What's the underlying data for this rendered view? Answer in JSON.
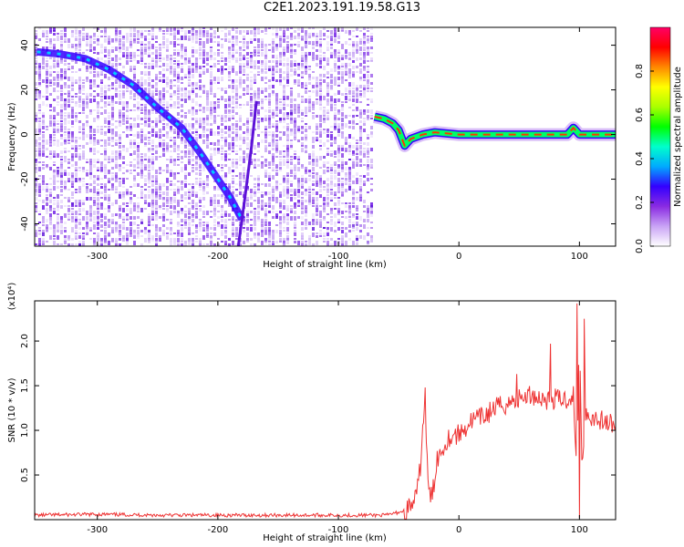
{
  "title": "C2E1.2023.191.19.58.G13",
  "colors": {
    "snr_line": "#ee3333",
    "frame": "#000000",
    "spectrogram_base": "#7b2ee8",
    "colorbar": [
      "#ffffff",
      "#c9a3f5",
      "#8a2be2",
      "#3300ff",
      "#00aaff",
      "#00ffcc",
      "#00ff00",
      "#aaff00",
      "#ffff00",
      "#ff8800",
      "#ff0000",
      "#ff0066"
    ]
  },
  "chart_data": [
    {
      "id": "spectrogram",
      "type": "heatmap",
      "xlabel": "Height of straight line (km)",
      "ylabel": "Frequency (Hz)",
      "xlim": [
        -352,
        130
      ],
      "ylim": [
        -50,
        48
      ],
      "x_ticks": [
        -300,
        -200,
        -100,
        0,
        100
      ],
      "y_ticks": [
        -40,
        -20,
        0,
        20,
        40
      ],
      "noise_region_x": [
        -352,
        -72
      ],
      "quiet_region_x": [
        -72,
        130
      ],
      "tracks": [
        {
          "name": "main-signal",
          "x": [
            -350,
            -330,
            -310,
            -290,
            -270,
            -250,
            -230,
            -215,
            -200,
            -190,
            -180
          ],
          "y": [
            37,
            36,
            34,
            29,
            22,
            12,
            3,
            -8,
            -20,
            -28,
            -38
          ]
        },
        {
          "name": "secondary-line",
          "x": [
            -183,
            -178,
            -172,
            -168
          ],
          "y": [
            -50,
            -30,
            -5,
            15
          ]
        },
        {
          "name": "carrier",
          "x": [
            -70,
            -62,
            -55,
            -50,
            -45,
            -40,
            -30,
            -20,
            0,
            20,
            50,
            80,
            90,
            95,
            100,
            130
          ],
          "y": [
            8,
            7,
            5,
            2,
            -5,
            -2,
            0,
            1,
            0,
            0,
            0,
            0,
            0,
            3,
            0,
            0
          ]
        }
      ],
      "colorbar": {
        "label": "Normalized spectral amplitude",
        "range": [
          0.0,
          1.0
        ],
        "ticks": [
          "0.0",
          "0.2",
          "0.4",
          "0.6",
          "0.8"
        ]
      }
    },
    {
      "id": "snr",
      "type": "line",
      "xlabel": "Height of straight line (km)",
      "ylabel": "SNR (10 * v/v)",
      "y_multiplier": "(x10⁴)",
      "xlim": [
        -352,
        130
      ],
      "ylim": [
        0,
        2.45
      ],
      "x_ticks": [
        -300,
        -200,
        -100,
        0,
        100
      ],
      "y_ticks": [
        0.5,
        1.0,
        1.5,
        2.0
      ],
      "y_tick_labels": [
        "0.5",
        "1.0",
        "1.5",
        "2.0"
      ],
      "series": [
        {
          "x": [
            -352,
            -300,
            -250,
            -200,
            -150,
            -100,
            -60,
            -45,
            -40,
            -35,
            -32,
            -30,
            -28,
            -27,
            -25,
            -22,
            -20,
            -18,
            -15,
            -10,
            -5,
            0,
            10,
            20,
            30,
            40,
            50,
            60,
            70,
            80,
            90,
            95,
            98,
            100,
            102,
            105,
            110,
            120,
            130
          ],
          "y": [
            0.05,
            0.06,
            0.05,
            0.05,
            0.05,
            0.05,
            0.05,
            0.1,
            0.15,
            0.25,
            0.6,
            1.0,
            1.45,
            0.8,
            0.3,
            0.25,
            0.5,
            0.7,
            0.75,
            0.9,
            0.95,
            0.95,
            1.1,
            1.15,
            1.25,
            1.3,
            1.35,
            1.4,
            1.35,
            1.35,
            1.35,
            1.4,
            0.4,
            2.3,
            0.6,
            1.2,
            1.15,
            1.1,
            1.05
          ]
        }
      ],
      "spikes": [
        {
          "x": -28,
          "y": 1.48
        },
        {
          "x": 48,
          "y": 1.63
        },
        {
          "x": 76,
          "y": 1.97
        },
        {
          "x": 98,
          "y": 2.42
        },
        {
          "x": 100,
          "y": 0.02
        },
        {
          "x": 104,
          "y": 2.25
        }
      ]
    }
  ]
}
